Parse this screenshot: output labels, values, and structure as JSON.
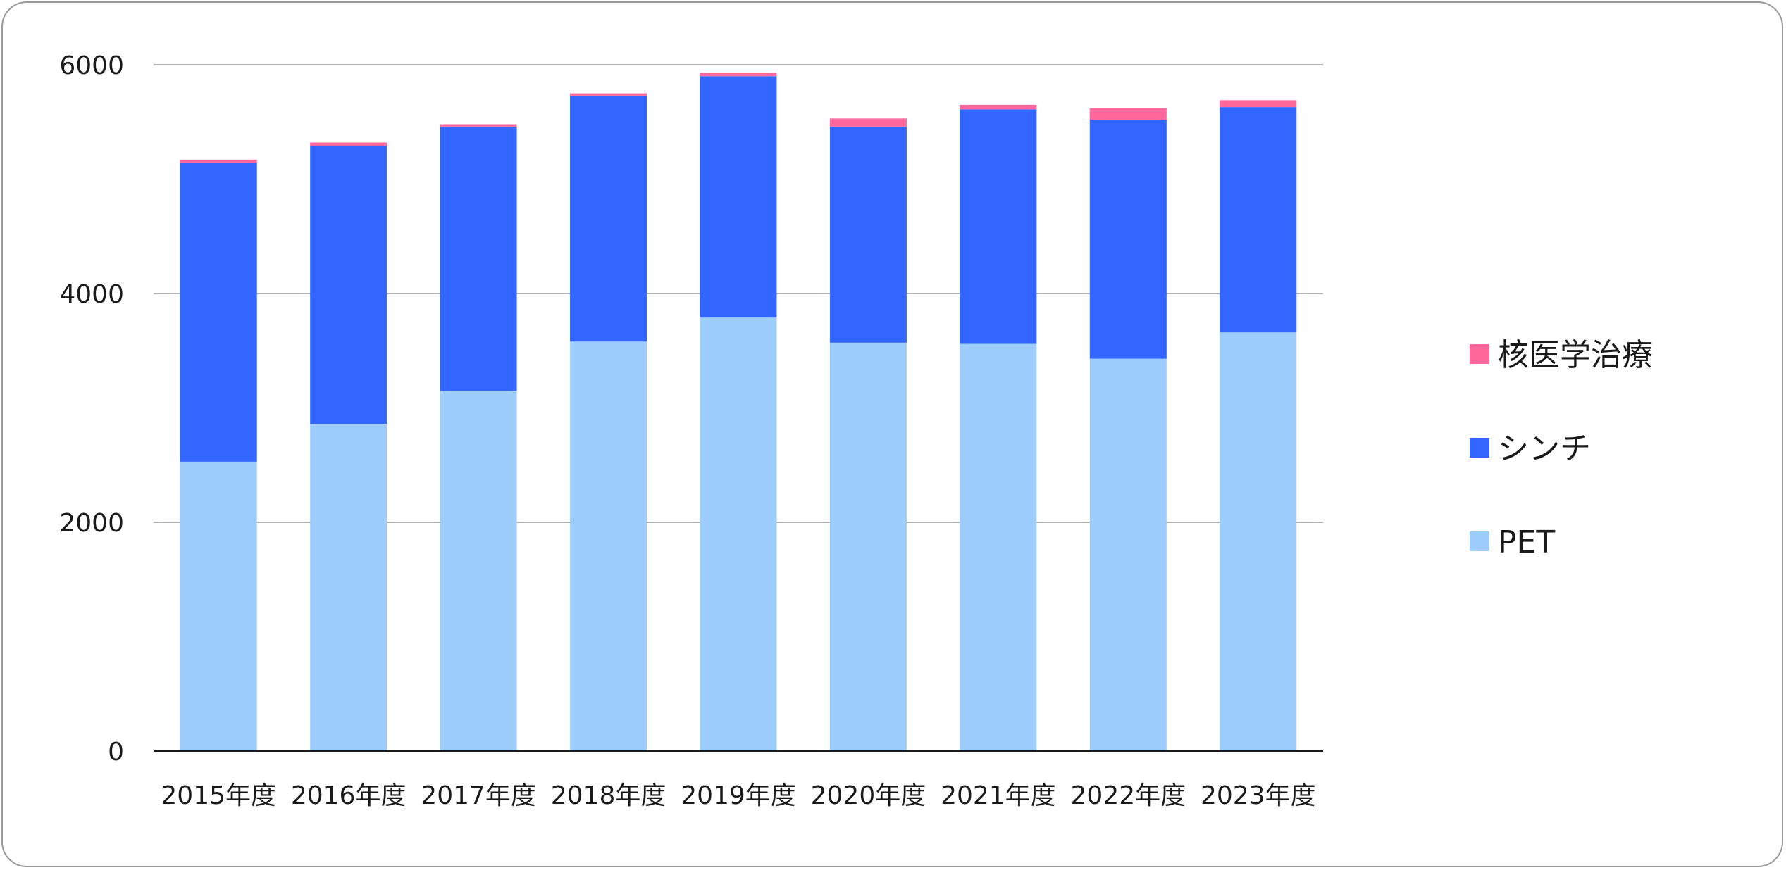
{
  "chart_data": {
    "type": "bar",
    "stacked": true,
    "title": "",
    "xlabel": "",
    "ylabel": "",
    "ylim": [
      0,
      6000
    ],
    "yticks": [
      0,
      2000,
      4000,
      6000
    ],
    "grid": true,
    "legend_position": "right",
    "categories": [
      "2015年度",
      "2016年度",
      "2017年度",
      "2018年度",
      "2019年度",
      "2020年度",
      "2021年度",
      "2022年度",
      "2023年度"
    ],
    "series": [
      {
        "name": "PET",
        "color": "#9dcdfd",
        "values": [
          2530,
          2860,
          3150,
          3580,
          3790,
          3570,
          3560,
          3430,
          3660
        ]
      },
      {
        "name": "シンチ",
        "color": "#3366ff",
        "values": [
          2610,
          2430,
          2310,
          2150,
          2110,
          1890,
          2050,
          2090,
          1970
        ]
      },
      {
        "name": "核医学治療",
        "color": "#ff6699",
        "values": [
          30,
          30,
          20,
          20,
          30,
          70,
          40,
          100,
          60
        ]
      }
    ],
    "legend_order": [
      "核医学治療",
      "シンチ",
      "PET"
    ]
  }
}
